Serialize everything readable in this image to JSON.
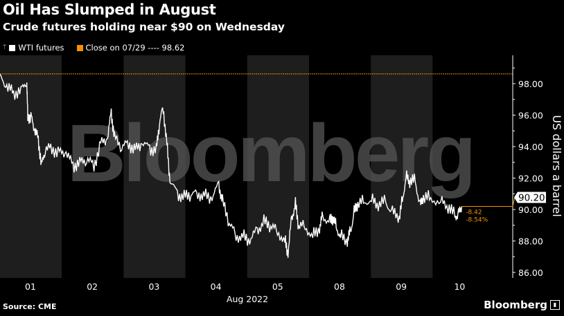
{
  "title": "Oil Has Slumped in August",
  "subtitle": "Crude futures holding near $90 on Wednesday",
  "legend": [
    {
      "label": "WTI futures",
      "color": "#ffffff"
    },
    {
      "label": "Close on 07/29 ---- 98.62",
      "color": "#f39200"
    }
  ],
  "source": "Source: CME",
  "brand": "Bloomberg",
  "watermark": "Bloomberg",
  "chart_data": {
    "type": "line",
    "title": "Oil Has Slumped in August",
    "xlabel": "Aug 2022",
    "ylabel": "US dollars a barrel",
    "x_tick_labels": [
      "01",
      "02",
      "03",
      "04",
      "05",
      "08",
      "09",
      "10"
    ],
    "y_ticks": [
      86,
      88,
      90,
      92,
      94,
      96,
      98
    ],
    "y_tick_labels": [
      "86.00",
      "88.00",
      "90.00",
      "92.00",
      "94.00",
      "96.00",
      "98.00"
    ],
    "ylim": [
      85.5,
      99.8
    ],
    "xlim": [
      0,
      8.3
    ],
    "reference_line": {
      "label": "Close on 07/29",
      "value": 98.62,
      "color": "#f39200"
    },
    "last_value_label": "90.20",
    "change_labels": [
      "-8.42",
      "-8.54%"
    ],
    "series": [
      {
        "name": "WTI futures",
        "color": "#ffffff",
        "x": [
          0,
          0.11,
          0.22,
          0.34,
          0.43,
          0.45,
          0.51,
          0.56,
          0.62,
          0.67,
          0.73,
          0.84,
          0.96,
          1.07,
          1.18,
          1.29,
          1.4,
          1.52,
          1.63,
          1.74,
          1.8,
          1.85,
          1.97,
          2.08,
          2.19,
          2.3,
          2.42,
          2.53,
          2.58,
          2.64,
          2.7,
          2.75,
          2.87,
          2.98,
          3.09,
          3.2,
          3.31,
          3.43,
          3.54,
          3.6,
          3.71,
          3.82,
          3.93,
          4.04,
          4.16,
          4.27,
          4.38,
          4.49,
          4.61,
          4.66,
          4.72,
          4.78,
          4.83,
          4.94,
          5.06,
          5.17,
          5.22,
          5.34,
          5.39,
          5.45,
          5.51,
          5.62,
          5.67,
          5.73,
          5.79,
          5.9,
          6.01,
          6.12,
          6.24,
          6.35,
          6.46,
          6.52,
          6.57,
          6.63,
          6.72,
          6.8,
          6.85,
          6.97,
          7.13,
          7.25,
          7.36,
          7.42,
          7.47
        ],
        "values": [
          98.4,
          97.8,
          97.4,
          97.6,
          98.2,
          96.0,
          95.8,
          95.0,
          94.5,
          92.8,
          93.8,
          93.9,
          93.6,
          93.6,
          92.8,
          93.0,
          93.2,
          92.8,
          94.2,
          94.5,
          96.2,
          94.6,
          94.0,
          94.2,
          93.8,
          94.2,
          93.9,
          93.8,
          95.5,
          96.5,
          94.2,
          91.8,
          91.0,
          90.8,
          91.0,
          91.0,
          90.9,
          90.7,
          91.6,
          90.5,
          89.2,
          88.3,
          88.3,
          88.0,
          88.7,
          89.2,
          89.0,
          88.6,
          88.0,
          87.2,
          89.5,
          90.3,
          89.0,
          88.9,
          88.3,
          88.8,
          89.6,
          89.2,
          89.5,
          88.8,
          88.3,
          88.0,
          88.6,
          89.8,
          90.4,
          90.5,
          90.6,
          90.3,
          90.5,
          89.8,
          89.5,
          90.8,
          92.1,
          91.8,
          91.8,
          90.2,
          90.8,
          90.7,
          90.5,
          90.2,
          89.6,
          89.7,
          90.2
        ]
      }
    ]
  }
}
